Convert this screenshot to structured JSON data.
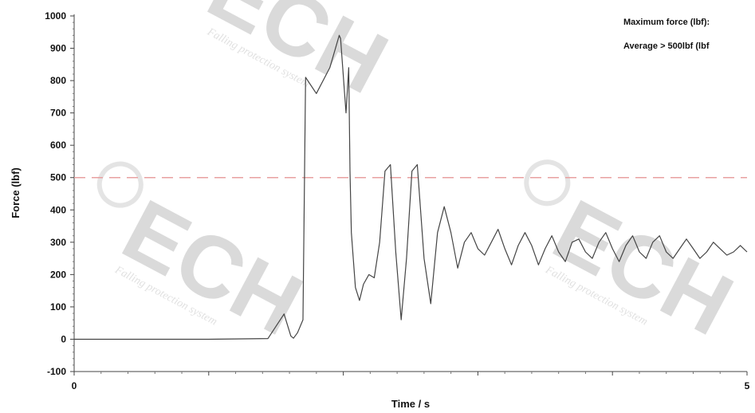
{
  "chart_data": {
    "type": "line",
    "xlabel": "Time / s",
    "ylabel": "Force (lbf)",
    "xlim": [
      0,
      5
    ],
    "ylim": [
      -100,
      1000
    ],
    "x_ticks": [
      0,
      5
    ],
    "y_ticks": [
      -100,
      0,
      100,
      200,
      300,
      400,
      500,
      600,
      700,
      800,
      900,
      1000
    ],
    "grid": false,
    "reference_lines": [
      {
        "y": 500,
        "style": "dashed",
        "color": "#e8a0a0"
      }
    ],
    "annotations": [
      "Maximum force (lbf):",
      "Average > 500lbf (lbf"
    ],
    "series": [
      {
        "color": "#444444",
        "x": [
          0.0,
          0.5,
          1.0,
          1.44,
          1.56,
          1.61,
          1.63,
          1.66,
          1.7,
          1.72,
          1.8,
          1.9,
          1.97,
          1.98,
          2.02,
          2.04,
          2.05,
          2.06,
          2.09,
          2.12,
          2.15,
          2.19,
          2.23,
          2.27,
          2.31,
          2.35,
          2.39,
          2.43,
          2.47,
          2.51,
          2.55,
          2.6,
          2.65,
          2.7,
          2.75,
          2.8,
          2.85,
          2.9,
          2.95,
          3.0,
          3.05,
          3.1,
          3.15,
          3.2,
          3.25,
          3.3,
          3.35,
          3.4,
          3.45,
          3.5,
          3.55,
          3.6,
          3.65,
          3.7,
          3.75,
          3.8,
          3.85,
          3.9,
          3.95,
          4.0,
          4.05,
          4.1,
          4.15,
          4.2,
          4.25,
          4.3,
          4.35,
          4.4,
          4.45,
          4.5,
          4.55,
          4.6,
          4.65,
          4.7,
          4.75,
          4.8,
          4.85,
          4.9,
          4.95,
          5.0
        ],
        "values": [
          0,
          0,
          0,
          2,
          78,
          10,
          3,
          20,
          60,
          810,
          760,
          840,
          940,
          930,
          700,
          840,
          520,
          330,
          160,
          120,
          170,
          200,
          190,
          300,
          520,
          540,
          270,
          60,
          250,
          520,
          540,
          250,
          110,
          330,
          410,
          330,
          220,
          300,
          330,
          280,
          260,
          300,
          340,
          280,
          230,
          290,
          330,
          290,
          230,
          280,
          320,
          270,
          240,
          300,
          310,
          270,
          250,
          300,
          330,
          280,
          240,
          290,
          320,
          270,
          250,
          300,
          320,
          270,
          250,
          280,
          310,
          280,
          250,
          270,
          300,
          280,
          260,
          270,
          290,
          270
        ]
      }
    ]
  }
}
